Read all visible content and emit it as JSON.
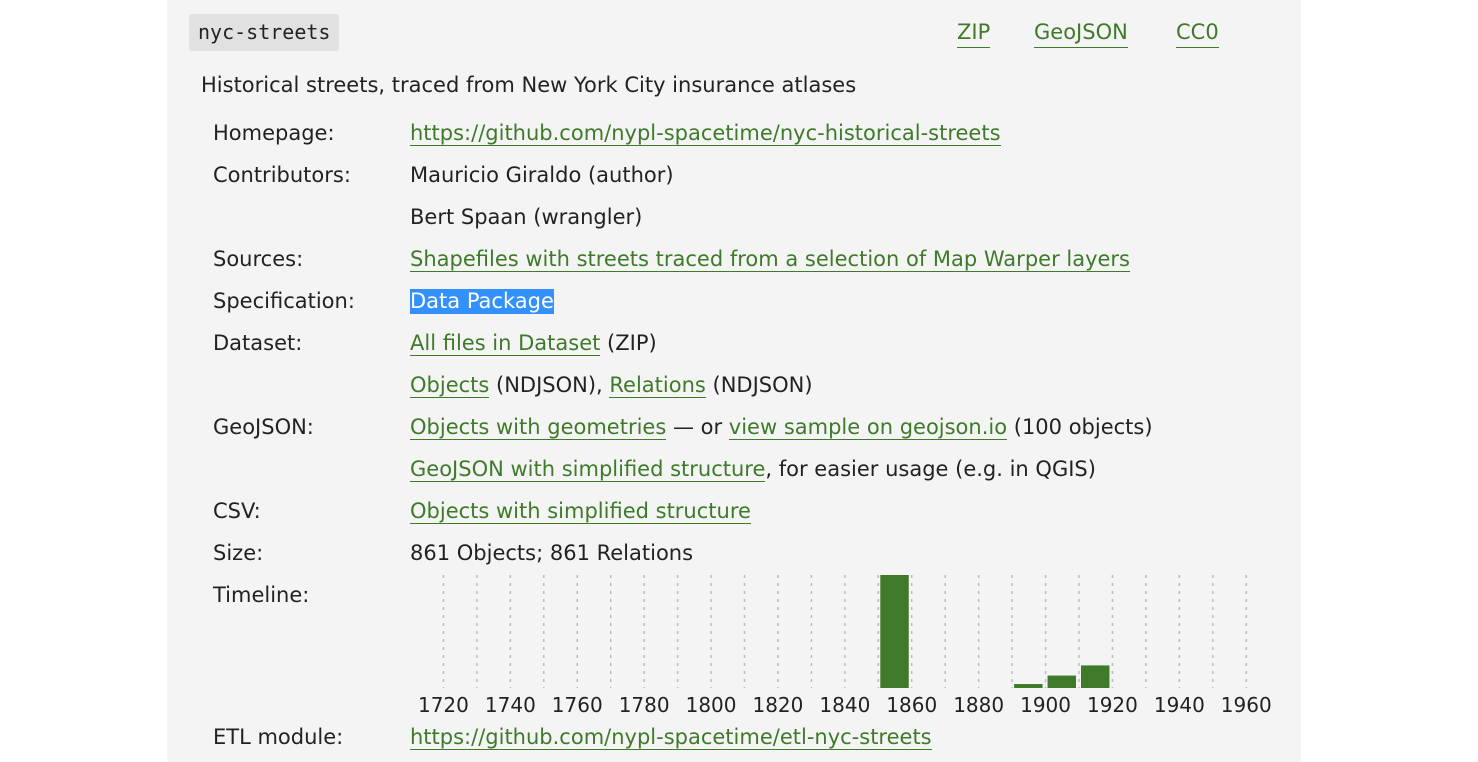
{
  "dataset": {
    "id": "nyc-streets",
    "links": {
      "zip": "ZIP",
      "geojson": "GeoJSON",
      "license": "CC0"
    },
    "description": "Historical streets, traced from New York City insurance atlases"
  },
  "fields": {
    "homepage": {
      "label": "Homepage:",
      "url": "https://github.com/nypl-spacetime/nyc-historical-streets"
    },
    "contributors": {
      "label": "Contributors:",
      "items": [
        "Mauricio Giraldo (author)",
        "Bert Spaan (wrangler)"
      ]
    },
    "sources": {
      "label": "Sources:",
      "link": "Shapefiles with streets traced from a selection of Map Warper layers"
    },
    "specification": {
      "label": "Specification:",
      "link": "Data Package"
    },
    "dataset": {
      "label": "Dataset:",
      "all_files_link": "All files in Dataset",
      "all_files_suffix": " (ZIP)",
      "objects_link": "Objects",
      "objects_suffix": " (NDJSON), ",
      "relations_link": "Relations",
      "relations_suffix": " (NDJSON)"
    },
    "geojson": {
      "label": "GeoJSON:",
      "geometries_link": "Objects with geometries",
      "or_text": " — or ",
      "sample_link": "view sample on geojson.io",
      "sample_suffix": " (100 objects)",
      "simplified_link": "GeoJSON with simplified structure",
      "simplified_suffix": ", for easier usage (e.g. in QGIS)"
    },
    "csv": {
      "label": "CSV:",
      "link": "Objects with simplified structure"
    },
    "size": {
      "label": "Size:",
      "value": "861 Objects; 861 Relations"
    },
    "timeline": {
      "label": "Timeline:"
    },
    "etl": {
      "label": "ETL module:",
      "url": "https://github.com/nypl-spacetime/etl-nyc-streets"
    }
  },
  "chart_data": {
    "type": "bar",
    "tick_labels": [
      "1720",
      "1740",
      "1760",
      "1780",
      "1800",
      "1820",
      "1840",
      "1860",
      "1880",
      "1900",
      "1920",
      "1940",
      "1960"
    ],
    "x_range": [
      1710,
      1960
    ],
    "bin_size": 10,
    "bars": [
      {
        "start": 1850,
        "value": 1.0
      },
      {
        "start": 1890,
        "value": 0.035
      },
      {
        "start": 1900,
        "value": 0.11
      },
      {
        "start": 1910,
        "value": 0.2
      }
    ],
    "ylim": [
      0,
      1
    ],
    "grid": true,
    "bar_color": "#3e7a2a",
    "grid_color": "#bbbbbb"
  }
}
